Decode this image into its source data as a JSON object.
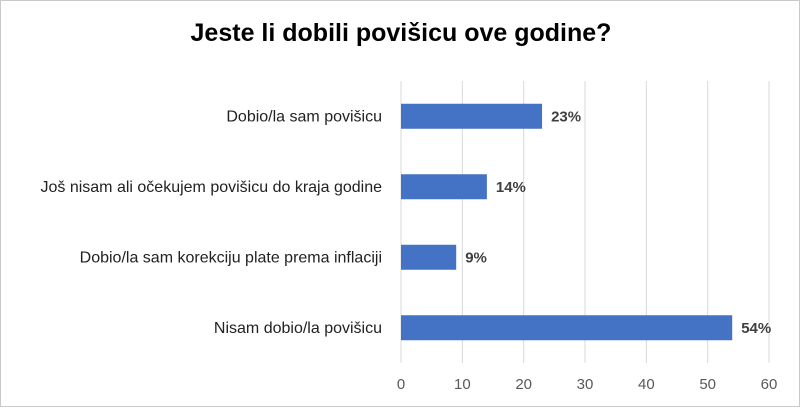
{
  "chart_data": {
    "type": "bar",
    "orientation": "horizontal",
    "title": "Jeste li dobili povišicu ove godine?",
    "categories": [
      "Dobio/la sam povišicu",
      "Još nisam ali očekujem povišicu do kraja godine",
      "Dobio/la sam korekciju plate prema inflaciji",
      "Nisam dobio/la povišicu"
    ],
    "values": [
      23,
      14,
      9,
      54
    ],
    "data_labels": [
      "23%",
      "14%",
      "9%",
      "54%"
    ],
    "xlim": [
      0,
      60
    ],
    "x_ticks": [
      0,
      10,
      20,
      30,
      40,
      50,
      60
    ],
    "grid": "vertical",
    "legend": "none",
    "bar_color": "#4472c4"
  }
}
